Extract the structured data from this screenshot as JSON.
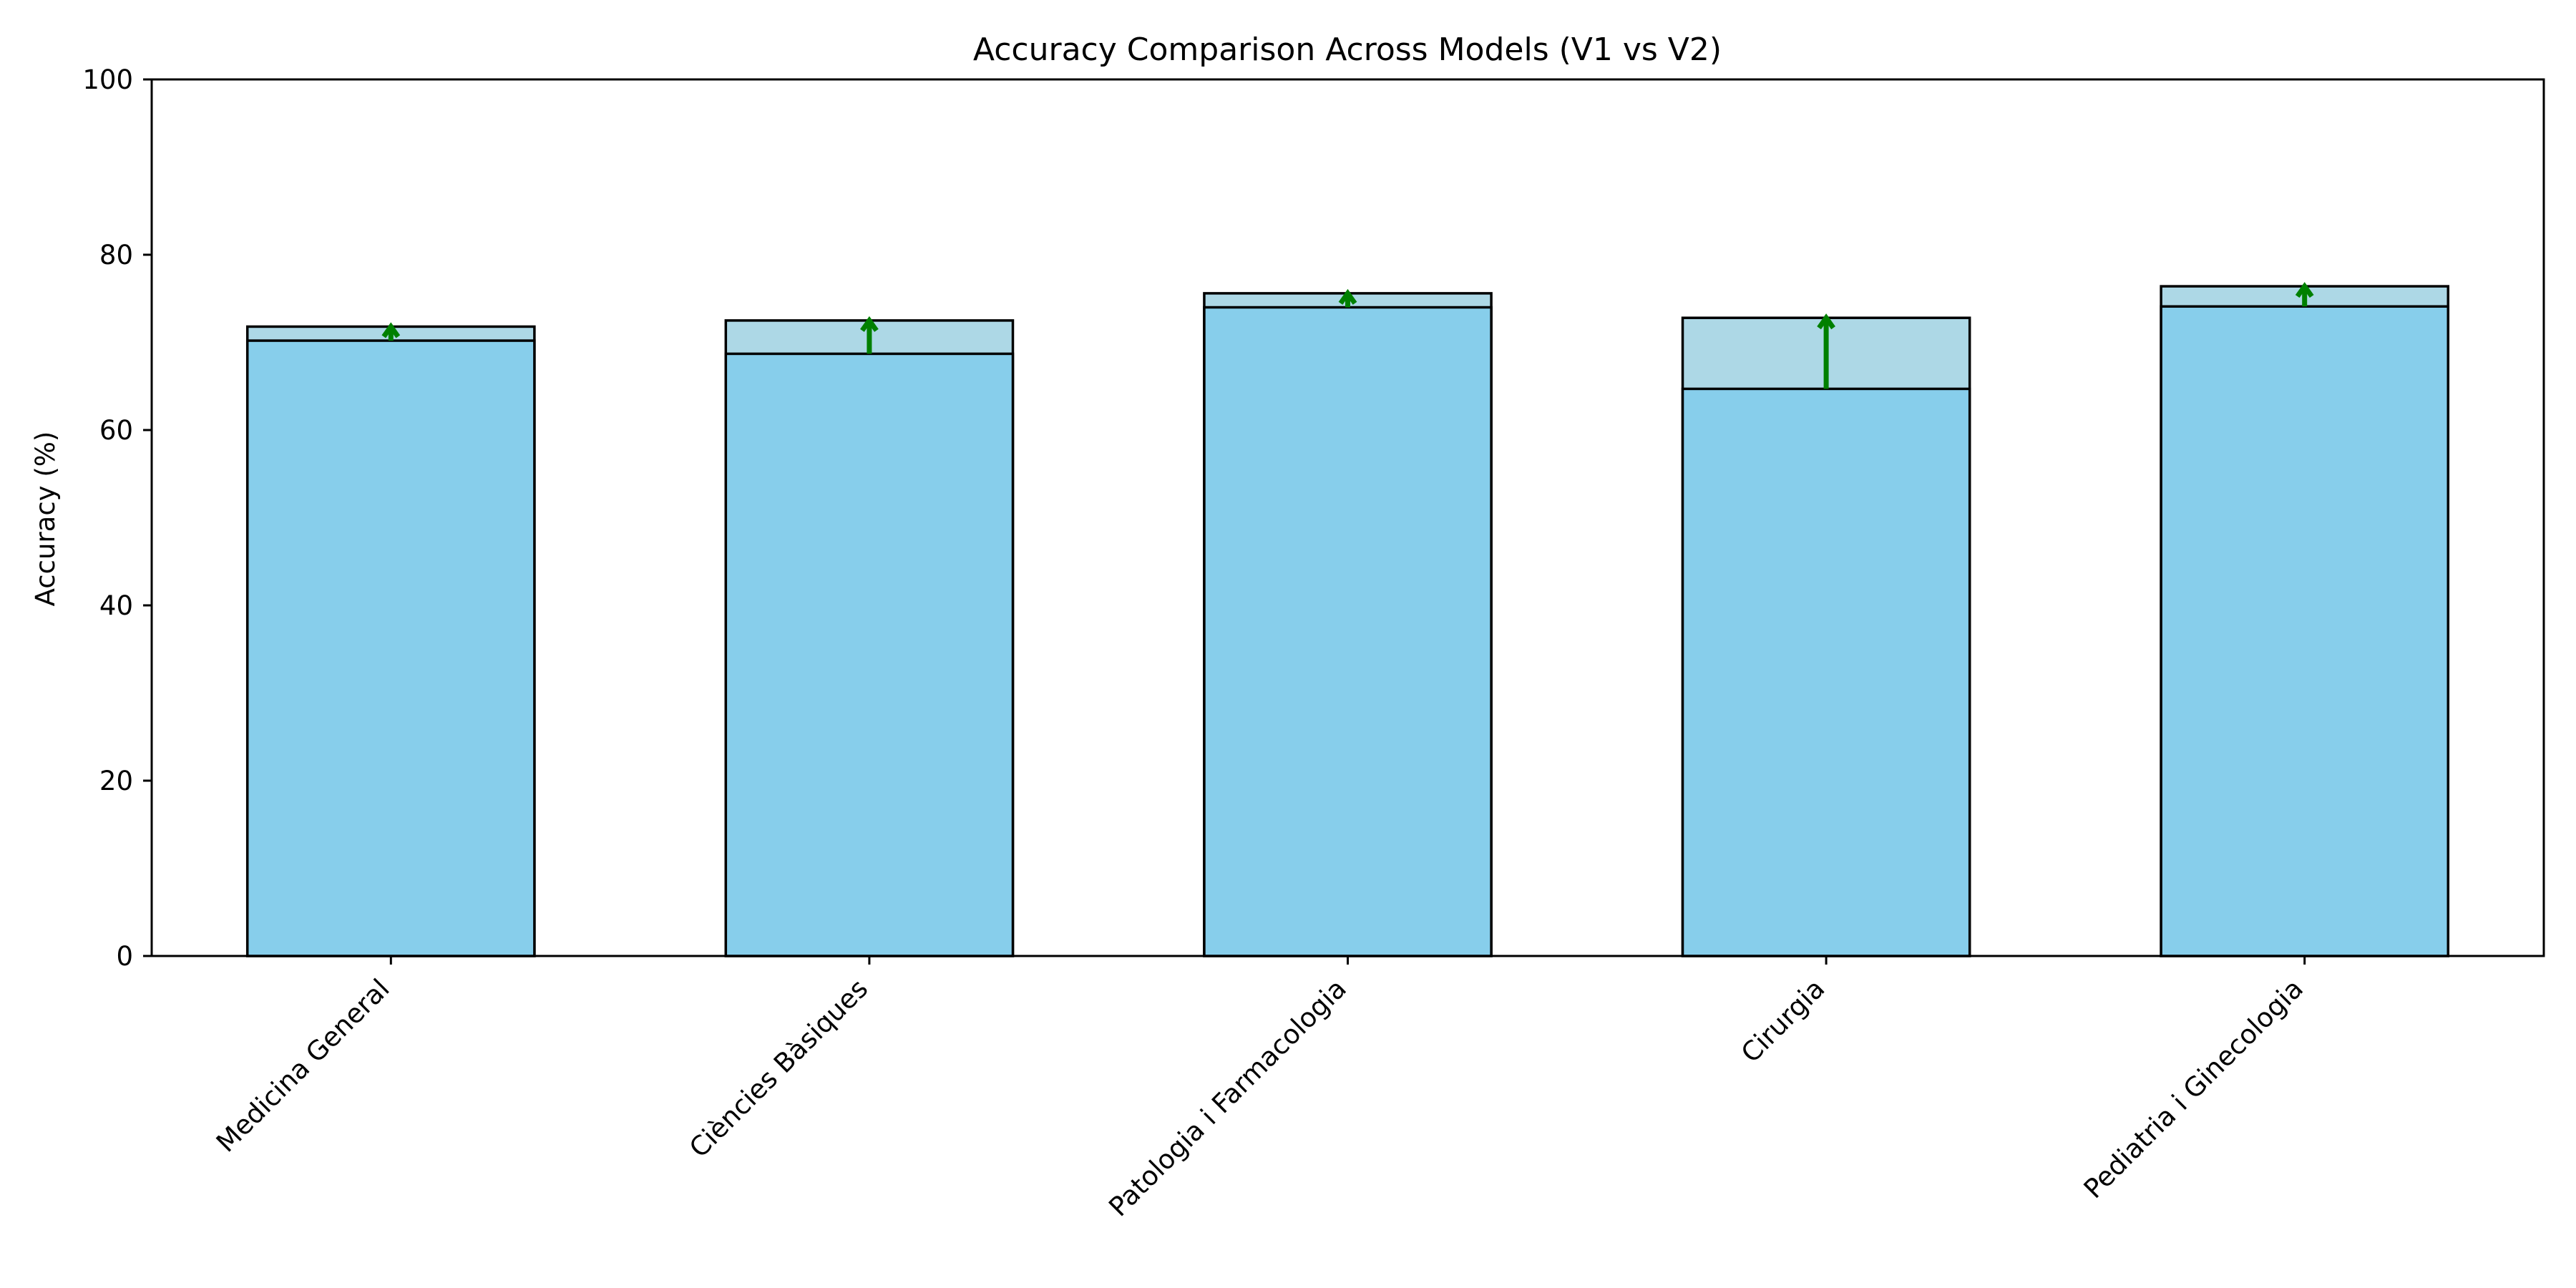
{
  "chart_data": {
    "type": "bar",
    "title": "Accuracy Comparison Across Models (V1 vs V2)",
    "xlabel": "",
    "ylabel": "Accuracy (%)",
    "ylim": [
      0,
      100
    ],
    "yticks": [
      0,
      20,
      40,
      60,
      80,
      100
    ],
    "grid": false,
    "categories": [
      "Medicina General",
      "Ciències Bàsiques",
      "Patologia i Farmacologia",
      "Cirurgia",
      "Pediatria i Ginecologia"
    ],
    "series": [
      {
        "values": [
          70.2,
          68.7,
          74.0,
          64.7,
          74.1
        ]
      },
      {
        "values": [
          71.8,
          72.5,
          75.6,
          72.8,
          76.4
        ]
      }
    ],
    "colors": {
      "bar_v1": "#87ceeb",
      "bar_v2": "#add8e6",
      "edge": "#000000",
      "arrow_up": "#008000",
      "arrow_down": "#ff0000"
    }
  }
}
